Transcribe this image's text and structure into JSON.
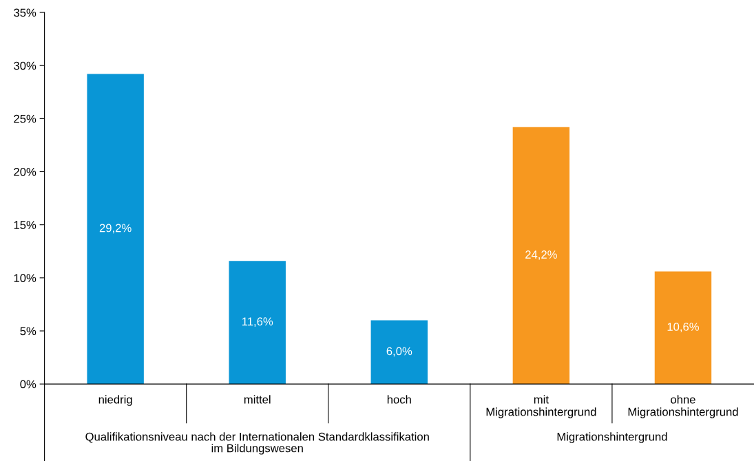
{
  "chart_data": {
    "type": "bar",
    "categories": [
      "niedrig",
      "mittel",
      "hoch",
      "mit\nMigrationshintergrund",
      "ohne\nMigrationshintergrund"
    ],
    "values": [
      29.2,
      11.6,
      6.0,
      24.2,
      10.6
    ],
    "colors": [
      "#0996d6",
      "#0996d6",
      "#0996d6",
      "#f7981f",
      "#f7981f"
    ],
    "value_labels": [
      "29,2%",
      "11,6%",
      "6,0%",
      "24,2%",
      "10,6%"
    ],
    "ylim": [
      0,
      35
    ],
    "yticks": [
      {
        "value": 0,
        "label": "0%"
      },
      {
        "value": 5,
        "label": "5%"
      },
      {
        "value": 10,
        "label": "10%"
      },
      {
        "value": 15,
        "label": "15%"
      },
      {
        "value": 20,
        "label": "20%"
      },
      {
        "value": 25,
        "label": "25%"
      },
      {
        "value": 30,
        "label": "30%"
      },
      {
        "value": 35,
        "label": "35%"
      }
    ],
    "grid": false,
    "legend": false,
    "annotations": [
      "Qualifikationsniveau nach der Internationalen Standardklassifikation\nim Bildungswesen",
      "Migrationshintergrund"
    ]
  }
}
